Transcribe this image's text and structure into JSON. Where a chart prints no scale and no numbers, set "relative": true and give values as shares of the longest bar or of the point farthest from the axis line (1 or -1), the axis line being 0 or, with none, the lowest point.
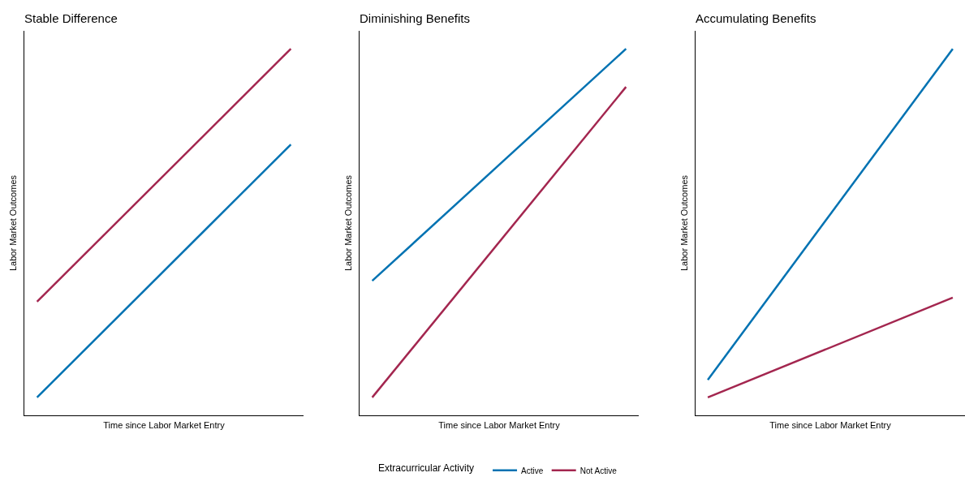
{
  "chart_data": [
    {
      "type": "line",
      "title": "Stable Difference",
      "xlabel": "Time since Labor Market Entry",
      "ylabel": "Labor Market Outcomes",
      "categories": [
        null,
        null
      ],
      "relative": true,
      "legend": false,
      "series": [
        {
          "color": "#0072b2",
          "values": [
            0.049,
            0.739
          ]
        },
        {
          "color": "#a3264f",
          "values": [
            0.31,
            1
          ]
        }
      ]
    },
    {
      "type": "line",
      "title": "Diminishing Benefits",
      "xlabel": "Time since Labor Market Entry",
      "ylabel": "Labor Market Outcomes",
      "categories": [
        null,
        null
      ],
      "relative": true,
      "legend": "bottom",
      "legend_title": "Extracurricular Activity",
      "series": [
        {
          "name": "Active",
          "color": "#0072b2",
          "values": [
            0.367,
            1
          ]
        },
        {
          "name": "Not Active",
          "color": "#a3264f",
          "values": [
            0.049,
            0.896
          ]
        }
      ]
    },
    {
      "type": "line",
      "title": "Accumulating Benefits",
      "xlabel": "Time since Labor Market Entry",
      "ylabel": "Labor Market Outcomes",
      "categories": [
        null,
        null
      ],
      "relative": true,
      "legend": false,
      "series": [
        {
          "color": "#0072b2",
          "values": [
            0.097,
            1
          ]
        },
        {
          "color": "#a3264f",
          "values": [
            0.049,
            0.321
          ]
        }
      ]
    }
  ]
}
